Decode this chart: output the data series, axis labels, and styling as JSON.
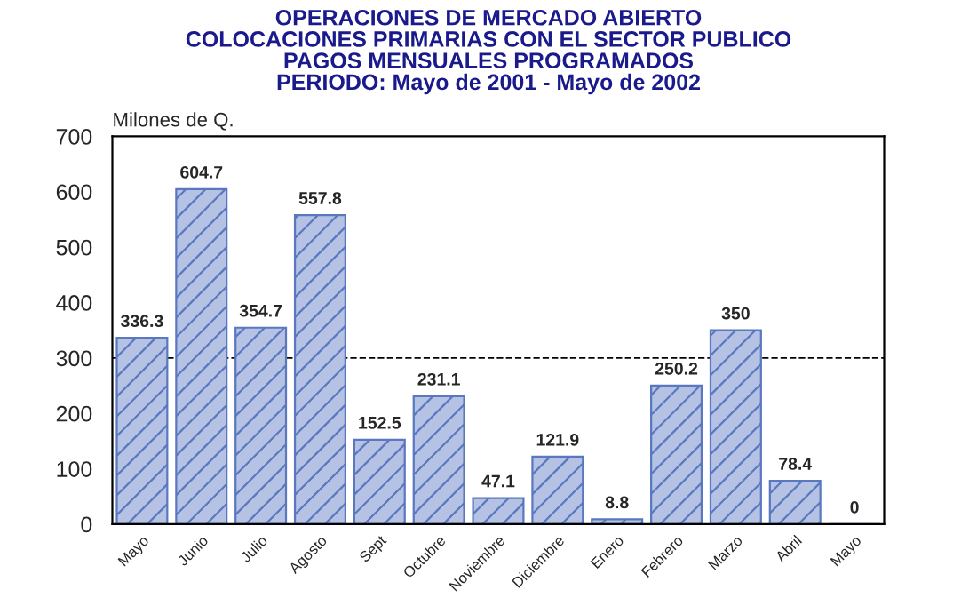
{
  "chart_data": {
    "type": "bar",
    "title": "OPERACIONES DE MERCADO ABIERTO\nCOLOCACIONES PRIMARIAS CON EL SECTOR PUBLICO\nPAGOS MENSUALES PROGRAMADOS\nPERIODO: Mayo de 2001 - Mayo de 2002",
    "ylabel": "Milones de Q.",
    "categories": [
      "Mayo",
      "Junio",
      "Julio",
      "Agosto",
      "Sept",
      "Octubre",
      "Noviembre",
      "Diciembre",
      "Enero",
      "Febrero",
      "Marzo",
      "Abril",
      "Mayo"
    ],
    "values": [
      336.3,
      604.7,
      354.7,
      557.8,
      152.5,
      231.1,
      47.1,
      121.9,
      8.8,
      250.2,
      350,
      78.4,
      0
    ],
    "color": "#5a78c0",
    "ylim": [
      0,
      700
    ],
    "yticks": [
      0,
      100,
      200,
      300,
      400,
      500,
      600,
      700
    ],
    "ref_lines": [
      {
        "axis": "y",
        "value": 300,
        "label": null,
        "color": "#000000",
        "line_style": "dashed"
      }
    ],
    "data_labels": true,
    "grid": false,
    "legend": false
  }
}
